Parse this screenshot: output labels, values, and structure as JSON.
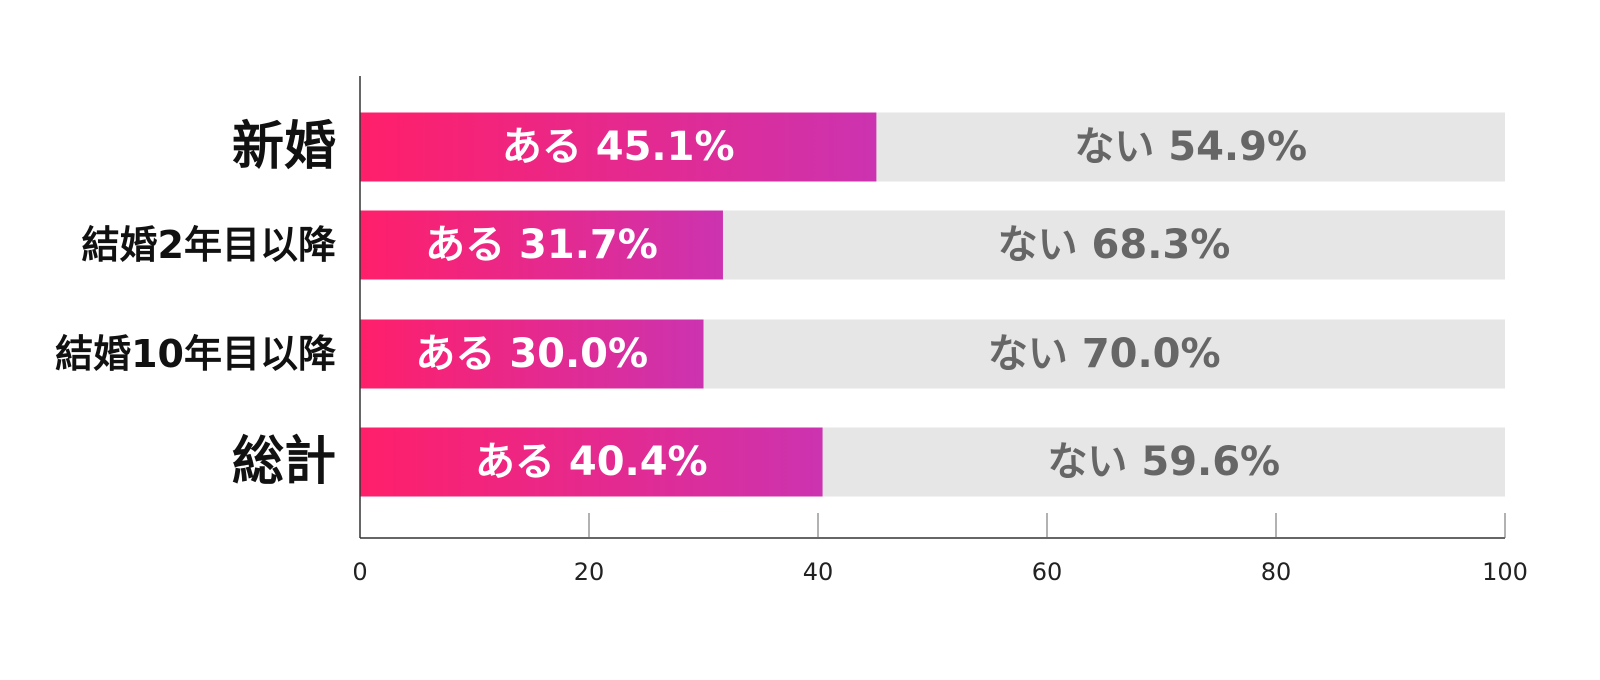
{
  "chart_data": {
    "type": "bar",
    "orientation": "horizontal",
    "stacked": true,
    "categories": [
      "新婚",
      "結婚2年目以降",
      "結婚10年目以降",
      "総計"
    ],
    "series": [
      {
        "name": "ある",
        "values": [
          45.1,
          31.7,
          30.0,
          40.4
        ],
        "labels": [
          "ある 45.1%",
          "ある 31.7%",
          "ある 30.0%",
          "ある 40.4%"
        ],
        "color_start": "#ff1f6a",
        "color_end": "#cc33b0",
        "label_color": "#ffffff"
      },
      {
        "name": "ない",
        "values": [
          54.9,
          68.3,
          70.0,
          59.6
        ],
        "labels": [
          "ない 54.9%",
          "ない 68.3%",
          "ない 70.0%",
          "ない 59.6%"
        ],
        "color": "#e6e6e6",
        "label_color": "#666666"
      }
    ],
    "xlim": [
      0,
      100
    ],
    "xticks": [
      0,
      20,
      40,
      60,
      80,
      100
    ],
    "xtick_labels": [
      "0",
      "20",
      "40",
      "60",
      "80",
      "100"
    ],
    "title": "",
    "xlabel": "",
    "ylabel": "",
    "grid": false,
    "legend": "none"
  }
}
